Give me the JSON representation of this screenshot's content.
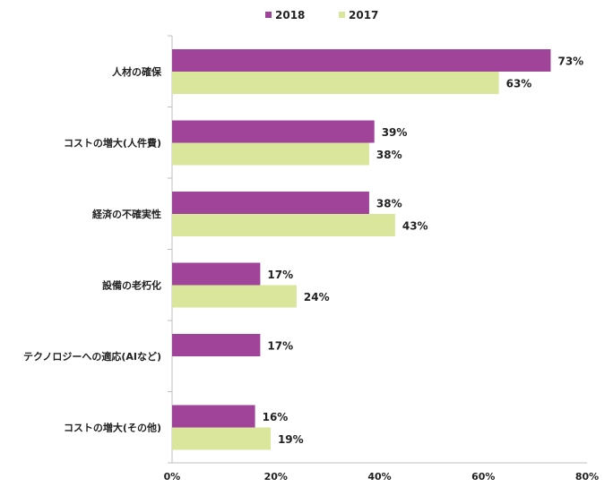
{
  "colors": {
    "series_2018": "#a0449a",
    "series_2017": "#d9e69b",
    "axis": "#bfbfbf"
  },
  "chart_data": {
    "type": "bar",
    "orientation": "horizontal",
    "categories": [
      "人材の確保",
      "コストの増大(人件費)",
      "経済の不確実性",
      "設備の老朽化",
      "テクノロジーへの適応(AIなど)",
      "コストの増大(その他)"
    ],
    "series": [
      {
        "name": "2018",
        "values": [
          73,
          39,
          38,
          17,
          17,
          16
        ],
        "labels": [
          "73%",
          "39%",
          "38%",
          "17%",
          "17%",
          "16%"
        ]
      },
      {
        "name": "2017",
        "values": [
          63,
          38,
          43,
          24,
          null,
          19
        ],
        "labels": [
          "63%",
          "38%",
          "43%",
          "24%",
          "",
          "19%"
        ]
      }
    ],
    "xlim": [
      0,
      80
    ],
    "xticks": [
      0,
      20,
      40,
      60,
      80
    ],
    "xtick_labels": [
      "0%",
      "20%",
      "40%",
      "60%",
      "80%"
    ],
    "legend_position": "top-center",
    "grid": false
  }
}
